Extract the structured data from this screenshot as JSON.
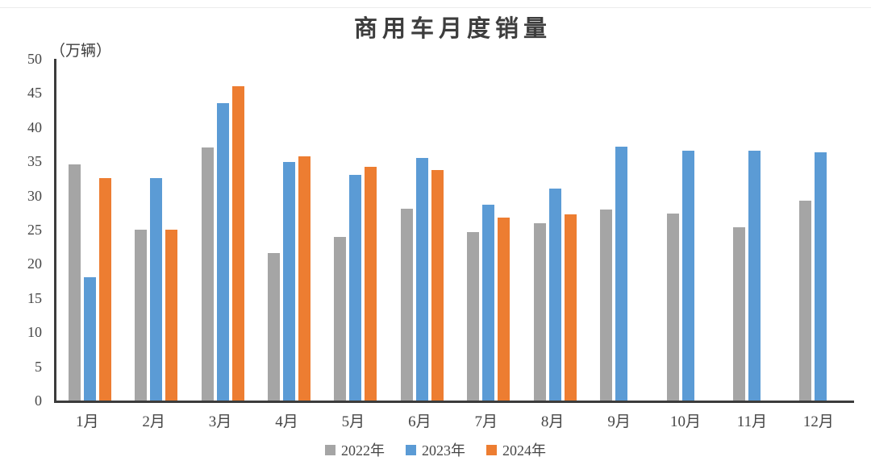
{
  "title": "商用车月度销量",
  "y_axis_unit": "（万辆）",
  "chart_data": {
    "type": "bar",
    "title": "商用车月度销量",
    "ylabel": "万辆",
    "xlabel": "",
    "categories": [
      "1月",
      "2月",
      "3月",
      "4月",
      "5月",
      "6月",
      "7月",
      "8月",
      "9月",
      "10月",
      "11月",
      "12月"
    ],
    "series": [
      {
        "name": "2022年",
        "color": "#A5A5A5",
        "values": [
          34.5,
          25.0,
          37.0,
          21.6,
          23.9,
          28.1,
          24.6,
          25.9,
          28.0,
          27.4,
          25.4,
          29.2
        ]
      },
      {
        "name": "2023年",
        "color": "#5B9BD5",
        "values": [
          18.0,
          32.5,
          43.5,
          34.9,
          33.0,
          35.5,
          28.7,
          31.0,
          37.2,
          36.5,
          36.6,
          36.3
        ]
      },
      {
        "name": "2024年",
        "color": "#ED7D31",
        "values": [
          32.6,
          25.0,
          46.0,
          35.7,
          34.2,
          33.7,
          26.8,
          27.3,
          null,
          null,
          null,
          null
        ]
      }
    ],
    "ylim": [
      0,
      50
    ],
    "yticks": [
      0,
      5,
      10,
      15,
      20,
      25,
      30,
      35,
      40,
      45,
      50
    ],
    "grid": false,
    "legend_position": "bottom"
  }
}
